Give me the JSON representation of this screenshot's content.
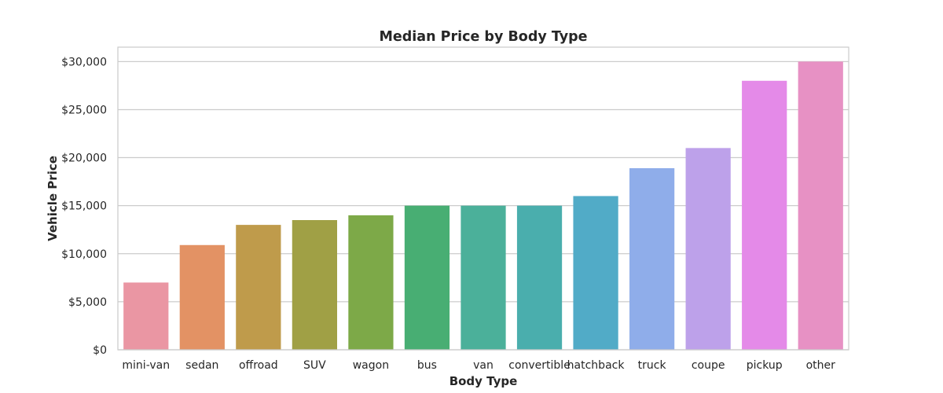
{
  "chart_data": {
    "type": "bar",
    "title": "Median Price by Body Type",
    "xlabel": "Body Type",
    "ylabel": "Vehicle Price",
    "categories": [
      "mini-van",
      "sedan",
      "offroad",
      "SUV",
      "wagon",
      "bus",
      "van",
      "convertible",
      "hatchback",
      "truck",
      "coupe",
      "pickup",
      "other"
    ],
    "values": [
      7000,
      10900,
      13000,
      13500,
      14000,
      15000,
      15000,
      15000,
      16000,
      18900,
      21000,
      28000,
      30000
    ],
    "colors": [
      "#ea96a3",
      "#e39264",
      "#bf9b4b",
      "#a0a045",
      "#7da948",
      "#48ae73",
      "#4bb09a",
      "#4aaead",
      "#51abc7",
      "#8fadea",
      "#bda1ea",
      "#e48ae8",
      "#e791c4"
    ],
    "ylim": [
      0,
      31500
    ],
    "yticks": [
      0,
      5000,
      10000,
      15000,
      20000,
      25000,
      30000
    ],
    "ytick_labels": [
      "$0",
      "$5,000",
      "$10,000",
      "$15,000",
      "$20,000",
      "$25,000",
      "$30,000"
    ],
    "grid": true,
    "legend": "none"
  }
}
